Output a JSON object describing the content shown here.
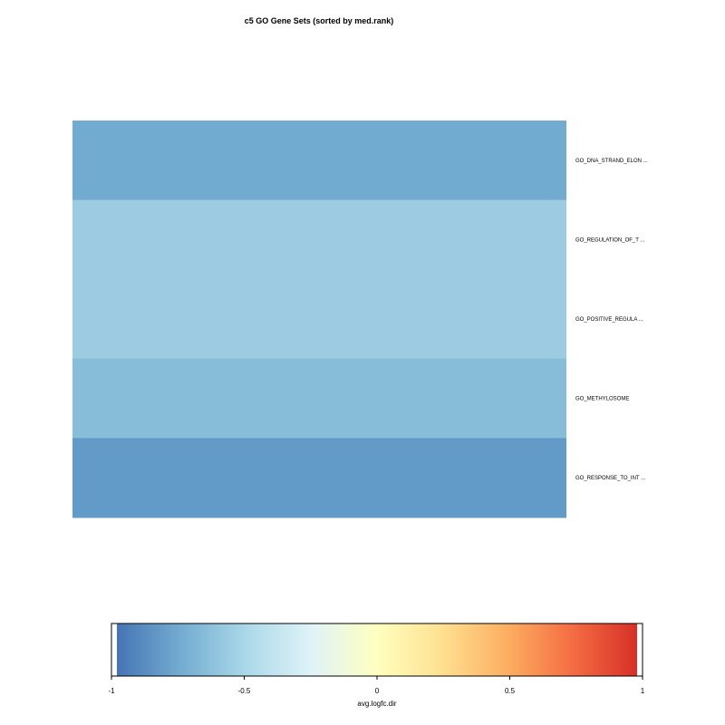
{
  "chart_data": {
    "type": "heatmap",
    "title": "c5 GO Gene Sets (sorted by med.rank)",
    "rows": [
      {
        "label": "GO_DNA_STRAND_ELON ...",
        "value": -0.62,
        "color": "#72abd0"
      },
      {
        "label": "GO_REGULATION_OF_T ...",
        "value": -0.47,
        "color": "#9dcce2"
      },
      {
        "label": "GO_POSITIVE_REGULA ...",
        "value": -0.47,
        "color": "#9dcce2"
      },
      {
        "label": "GO_METHYLOSOME",
        "value": -0.54,
        "color": "#87bdd9"
      },
      {
        "label": "GO_RESPONSE_TO_INT ...",
        "value": -0.72,
        "color": "#639bc8"
      }
    ],
    "colorbar": {
      "label": "avg.logfc.dir",
      "range": [
        -1,
        1
      ],
      "ticks": [
        "-1",
        "-0.5",
        "0",
        "0.5",
        "1"
      ],
      "tick_values": [
        -1,
        -0.5,
        0,
        0.5,
        1
      ],
      "colors": [
        "#4575b4",
        "#74add1",
        "#abd9e9",
        "#e0f3f8",
        "#ffffbf",
        "#fee090",
        "#fdae61",
        "#f46d43",
        "#d73027"
      ]
    }
  }
}
